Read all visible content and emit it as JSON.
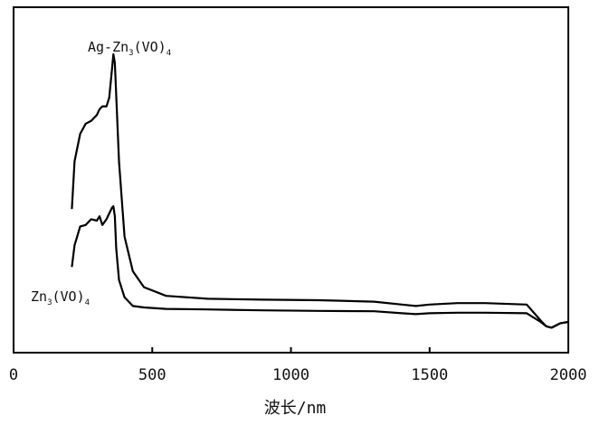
{
  "chart_data": {
    "type": "line",
    "title": "",
    "xlabel": "波长/nm",
    "ylabel": "",
    "xlim": [
      0,
      2000
    ],
    "ylim": [
      0,
      1
    ],
    "xticks": [
      0,
      500,
      1000,
      1500,
      2000
    ],
    "grid": false,
    "series": [
      {
        "name": "Ag-Zn3(VO)4",
        "label_parts": [
          "Ag-Zn",
          "3",
          "(VO)",
          "4"
        ],
        "x": [
          210,
          220,
          240,
          260,
          280,
          300,
          310,
          320,
          335,
          345,
          355,
          360,
          365,
          370,
          380,
          400,
          430,
          470,
          550,
          700,
          900,
          1100,
          1300,
          1400,
          1450,
          1500,
          1600,
          1700,
          1850,
          1900,
          1920,
          1940,
          1970,
          2000
        ],
        "y": [
          0.465,
          0.63,
          0.725,
          0.76,
          0.77,
          0.79,
          0.81,
          0.82,
          0.82,
          0.85,
          0.95,
          1.0,
          0.97,
          0.86,
          0.63,
          0.37,
          0.25,
          0.195,
          0.165,
          0.155,
          0.152,
          0.15,
          0.145,
          0.135,
          0.13,
          0.135,
          0.14,
          0.14,
          0.135,
          0.08,
          0.06,
          0.055,
          0.07,
          0.075
        ]
      },
      {
        "name": "Zn3(VO)4",
        "label_parts": [
          "Zn",
          "3",
          "(VO)",
          "4"
        ],
        "x": [
          210,
          220,
          240,
          260,
          280,
          300,
          310,
          320,
          335,
          345,
          355,
          360,
          365,
          370,
          380,
          400,
          430,
          470,
          550,
          700,
          900,
          1100,
          1300,
          1400,
          1450,
          1500,
          1600,
          1700,
          1850,
          1900,
          1920,
          1940,
          1970,
          2000
        ],
        "y": [
          0.265,
          0.34,
          0.405,
          0.41,
          0.43,
          0.425,
          0.44,
          0.41,
          0.43,
          0.45,
          0.47,
          0.475,
          0.44,
          0.33,
          0.22,
          0.16,
          0.13,
          0.125,
          0.12,
          0.118,
          0.115,
          0.113,
          0.112,
          0.105,
          0.102,
          0.105,
          0.107,
          0.107,
          0.105,
          0.075,
          0.06,
          0.055,
          0.07,
          0.075
        ]
      }
    ]
  }
}
